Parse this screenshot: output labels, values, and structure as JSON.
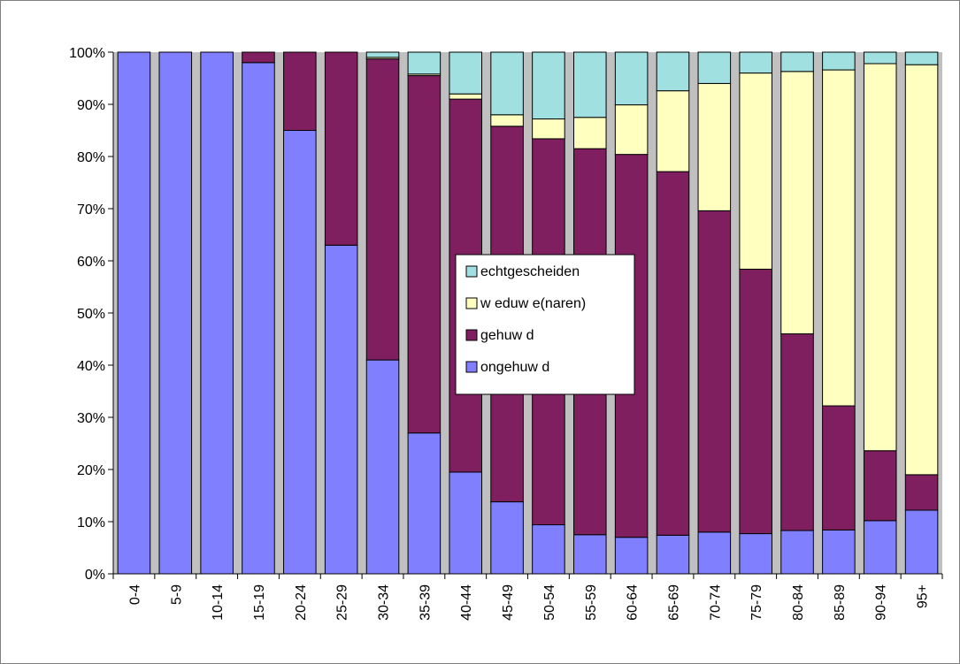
{
  "chart_data": {
    "type": "bar",
    "stacked": true,
    "percent": true,
    "title": "",
    "xlabel": "",
    "ylabel": "",
    "ylim": [
      0,
      100
    ],
    "yticks": [
      "0%",
      "10%",
      "20%",
      "30%",
      "40%",
      "50%",
      "60%",
      "70%",
      "80%",
      "90%",
      "100%"
    ],
    "grid": "none",
    "legend_position": "center",
    "categories": [
      "0-4",
      "5-9",
      "10-14",
      "15-19",
      "20-24",
      "25-29",
      "30-34",
      "35-39",
      "40-44",
      "45-49",
      "50-54",
      "55-59",
      "60-64",
      "65-69",
      "70-74",
      "75-79",
      "80-84",
      "85-89",
      "90-94",
      "95+"
    ],
    "series": [
      {
        "name": "ongehuw d",
        "color": "#8080ff",
        "values": [
          100,
          100,
          100,
          98,
          85,
          63,
          41,
          27,
          19.5,
          13.8,
          9.4,
          7.5,
          7,
          7.4,
          8,
          7.7,
          8.3,
          8.4,
          10.2,
          12.2
        ]
      },
      {
        "name": "gehuw d",
        "color": "#7f1f5f",
        "values": [
          0,
          0,
          0,
          2,
          15,
          37,
          57.7,
          68.5,
          71.5,
          72,
          74,
          74,
          73.4,
          69.7,
          61.6,
          50.7,
          37.7,
          23.8,
          13.4,
          6.8
        ]
      },
      {
        "name": "w eduw e(naren)",
        "color": "#ffffc0",
        "values": [
          0,
          0,
          0,
          0,
          0,
          0,
          0.3,
          0.3,
          1,
          2.2,
          3.8,
          6,
          9.5,
          15.5,
          24.4,
          37.6,
          50.3,
          64.4,
          74.2,
          78.6
        ]
      },
      {
        "name": "echtgescheiden",
        "color": "#a0e0e0",
        "values": [
          0,
          0,
          0,
          0,
          0,
          0,
          1,
          4.2,
          8,
          12,
          12.8,
          12.5,
          10.1,
          7.4,
          6,
          4,
          3.7,
          3.4,
          2.2,
          2.4
        ]
      }
    ],
    "legend_order": [
      "echtgescheiden",
      "w eduw e(naren)",
      "gehuw d",
      "ongehuw d"
    ]
  }
}
